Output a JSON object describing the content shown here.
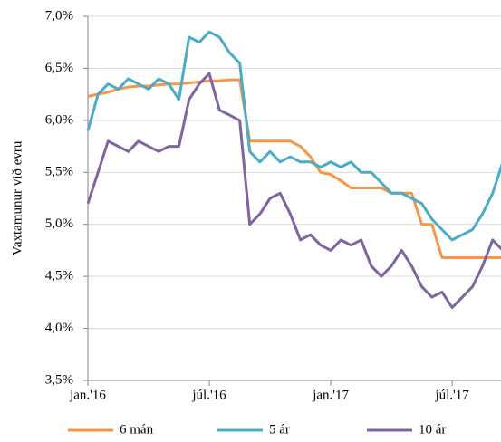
{
  "chart_data": {
    "type": "line",
    "ylabel": "Vaxtamunur  við evru",
    "categories": [
      "jan.'16",
      null,
      null,
      null,
      null,
      null,
      null,
      null,
      null,
      null,
      null,
      null,
      "júl.'16",
      null,
      null,
      null,
      null,
      null,
      null,
      null,
      null,
      null,
      null,
      null,
      "jan.'17",
      null,
      null,
      null,
      null,
      null,
      null,
      null,
      null,
      null,
      null,
      null,
      "júl.'17",
      null,
      null,
      null,
      null,
      null
    ],
    "series": [
      {
        "name": "6 mán",
        "color": "#f79646",
        "values": [
          6.23,
          6.25,
          6.27,
          6.3,
          6.32,
          6.33,
          6.33,
          6.34,
          6.35,
          6.35,
          6.36,
          6.37,
          6.38,
          6.38,
          6.39,
          6.39,
          5.8,
          5.8,
          5.8,
          5.8,
          5.8,
          5.75,
          5.65,
          5.5,
          5.48,
          5.42,
          5.35,
          5.35,
          5.35,
          5.35,
          5.3,
          5.3,
          5.3,
          5.0,
          5.0,
          4.68,
          4.68,
          4.68,
          4.68,
          4.68,
          4.68,
          4.68
        ]
      },
      {
        "name": "5 ár",
        "color": "#4bacc6",
        "values": [
          5.9,
          6.25,
          6.35,
          6.3,
          6.4,
          6.35,
          6.3,
          6.4,
          6.35,
          6.2,
          6.8,
          6.75,
          6.85,
          6.8,
          6.65,
          6.55,
          5.7,
          5.6,
          5.7,
          5.6,
          5.65,
          5.6,
          5.6,
          5.55,
          5.6,
          5.55,
          5.6,
          5.5,
          5.5,
          5.4,
          5.3,
          5.3,
          5.25,
          5.2,
          5.05,
          4.95,
          4.85,
          4.9,
          4.95,
          5.1,
          5.3,
          5.6
        ]
      },
      {
        "name": "10 ár",
        "color": "#8064a2",
        "values": [
          5.2,
          5.5,
          5.8,
          5.75,
          5.7,
          5.8,
          5.75,
          5.7,
          5.75,
          5.75,
          6.2,
          6.35,
          6.45,
          6.1,
          6.05,
          6.0,
          5.0,
          5.1,
          5.25,
          5.3,
          5.1,
          4.85,
          4.9,
          4.8,
          4.75,
          4.85,
          4.8,
          4.85,
          4.6,
          4.5,
          4.6,
          4.75,
          4.6,
          4.4,
          4.3,
          4.35,
          4.2,
          4.3,
          4.4,
          4.6,
          4.85,
          4.75
        ]
      }
    ],
    "ylim": [
      3.5,
      7.0
    ],
    "yticks": [
      {
        "value": 3.5,
        "label": "3,5%"
      },
      {
        "value": 4.0,
        "label": "4,0%"
      },
      {
        "value": 4.5,
        "label": "4,5%"
      },
      {
        "value": 5.0,
        "label": "5,0%"
      },
      {
        "value": 5.5,
        "label": "5,5%"
      },
      {
        "value": 6.0,
        "label": "6,0%"
      },
      {
        "value": 6.5,
        "label": "6,5%"
      },
      {
        "value": 7.0,
        "label": "7,0%"
      }
    ],
    "grid": true,
    "legend": "bottom"
  }
}
